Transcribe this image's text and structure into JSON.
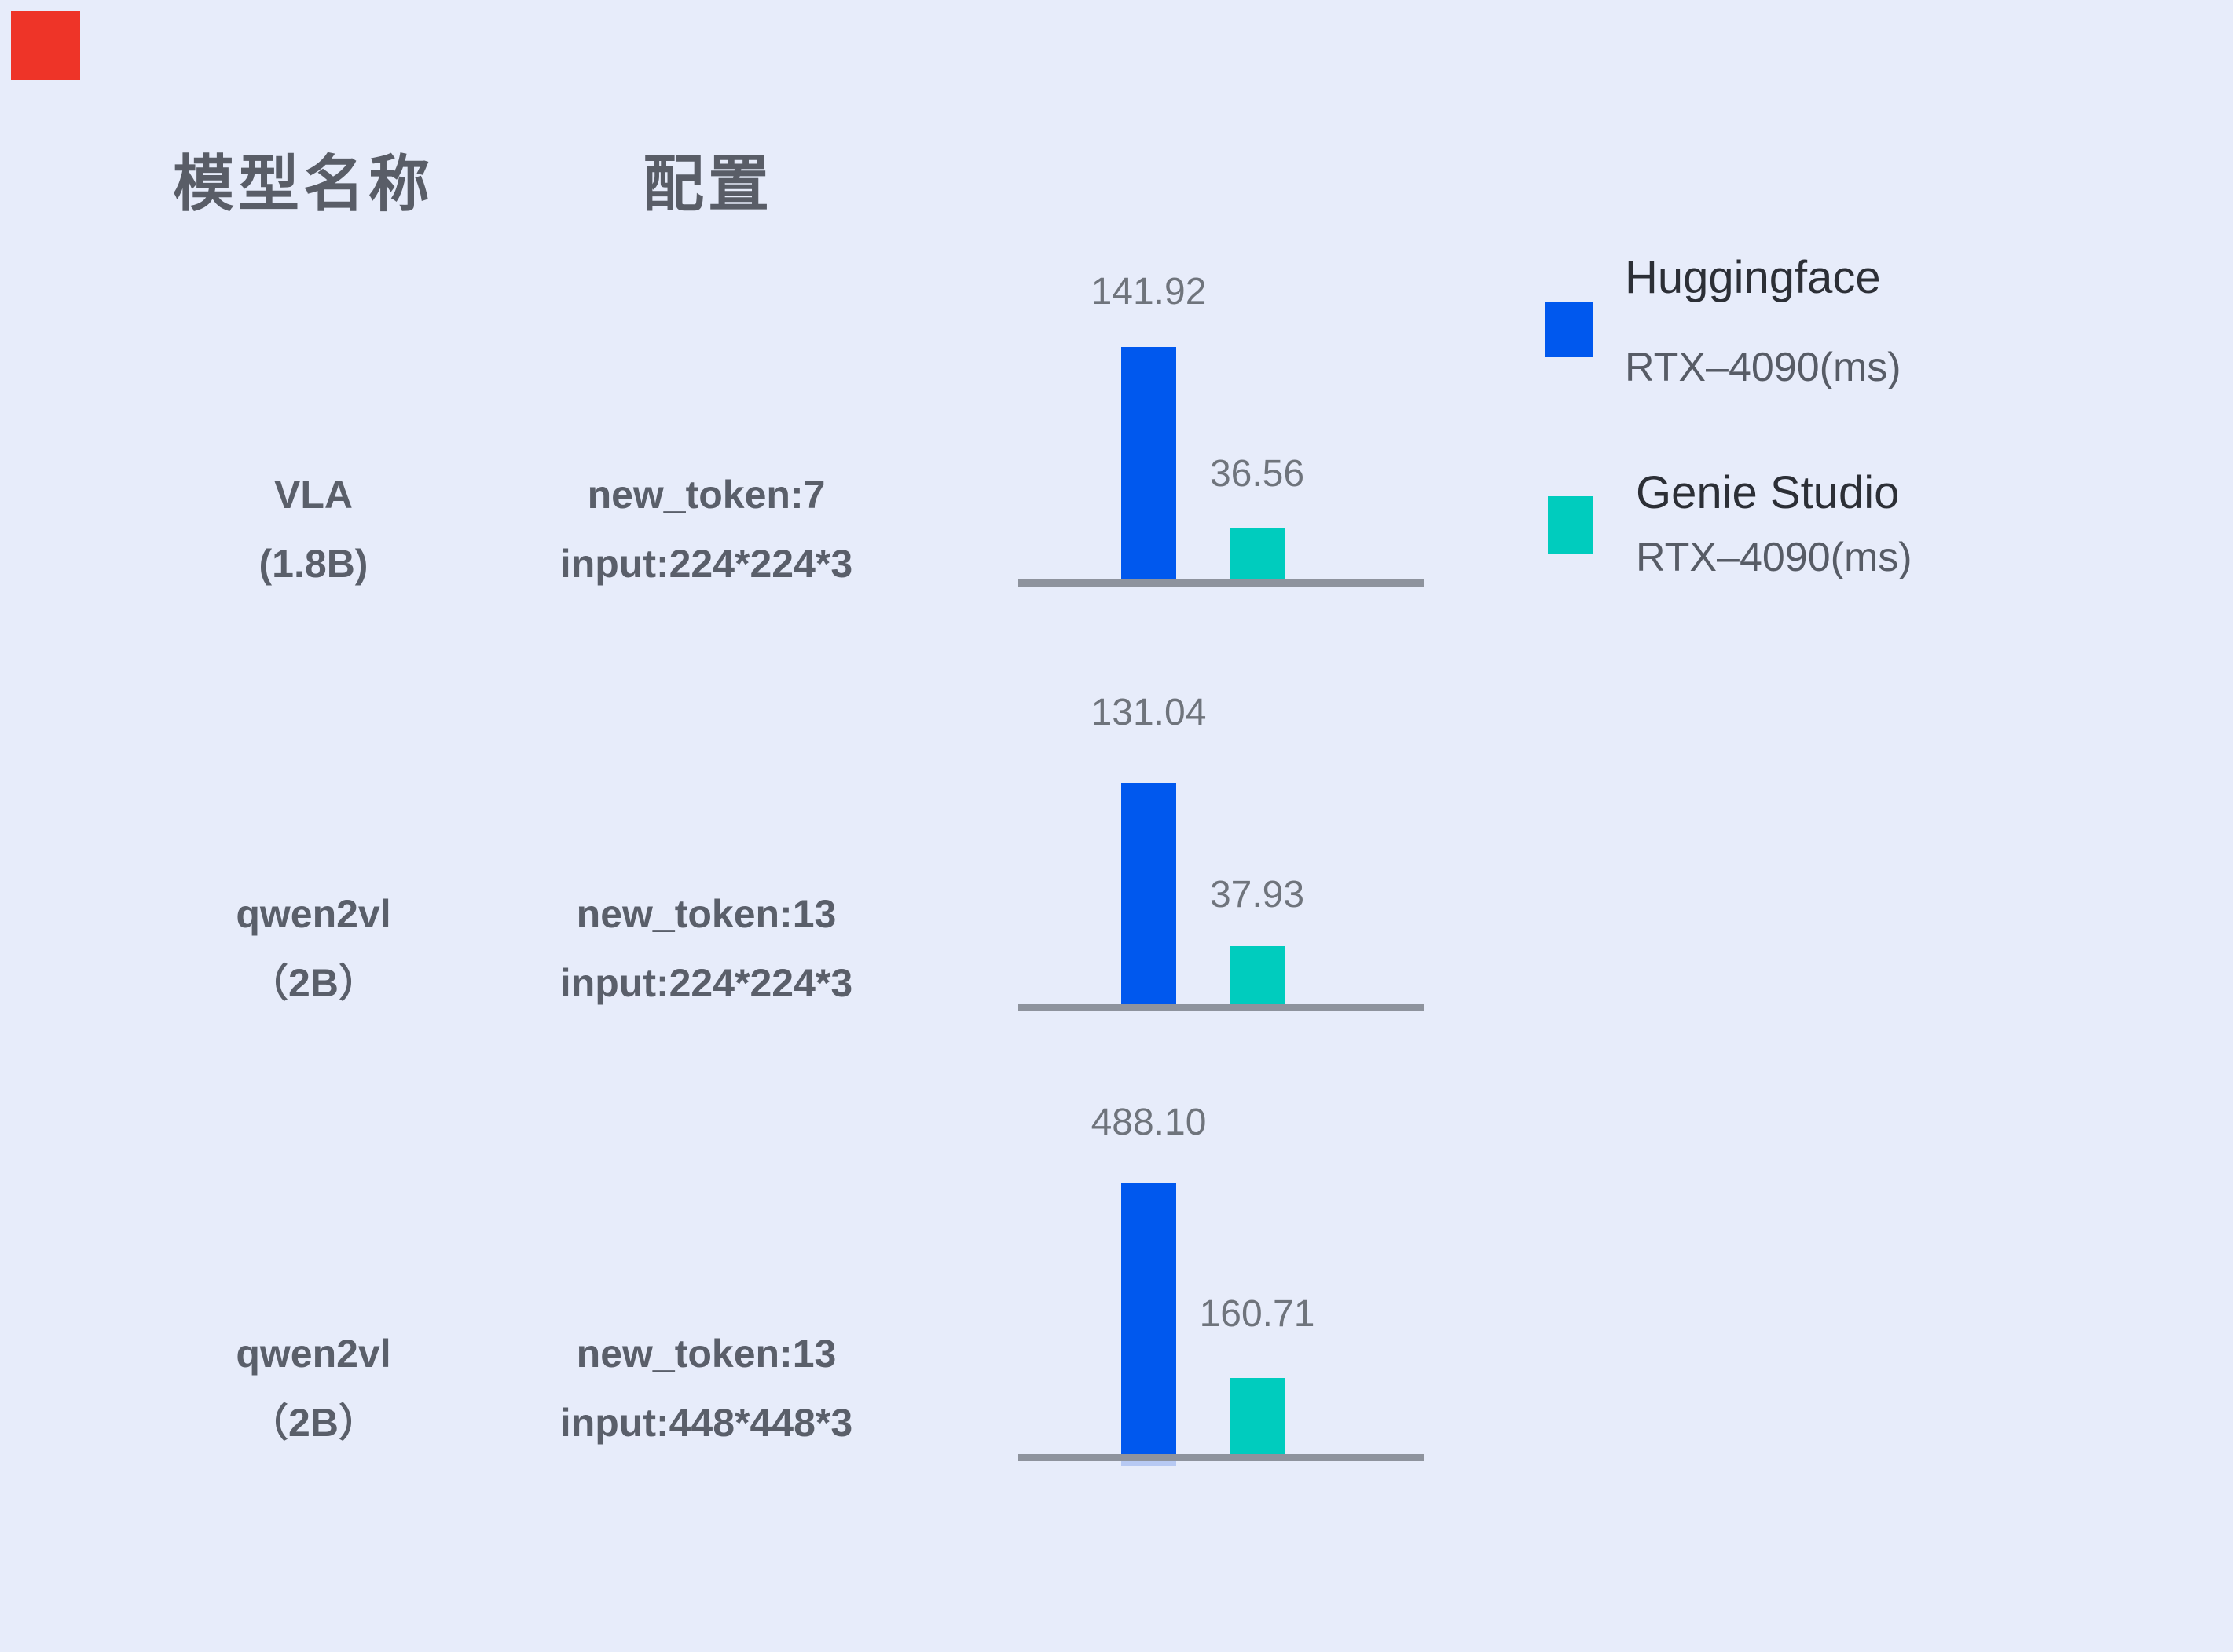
{
  "window": {
    "background": "#e7ecfa",
    "marker_color": "#ee3428"
  },
  "table_header": {
    "model": "模型名称",
    "config": "配置"
  },
  "legend": {
    "items": [
      {
        "name": "Huggingface",
        "device": "RTX–4090(ms)",
        "color": "#0058ee"
      },
      {
        "name": "Genie Studio",
        "device": "RTX–4090(ms)",
        "color": "#00ccbe"
      }
    ]
  },
  "chart_data": {
    "type": "bar",
    "orientation": "vertical",
    "unit": "ms",
    "grid": false,
    "legend_position": "right",
    "categories": [
      "VLA (1.8B)",
      "qwen2vl (2B)",
      "qwen2vl (2B)"
    ],
    "series": [
      {
        "name": "Huggingface RTX–4090(ms)",
        "color": "#0058ee",
        "values": [
          141.92,
          131.04,
          488.1
        ]
      },
      {
        "name": "Genie Studio RTX–4090(ms)",
        "color": "#00ccbe",
        "values": [
          36.56,
          37.93,
          160.71
        ]
      }
    ],
    "rows": [
      {
        "model": [
          "VLA",
          "(1.8B)"
        ],
        "config": [
          "new_token:7",
          "input:224*224*3"
        ],
        "huggingface_ms": "141.92",
        "genie_studio_ms": "36.56"
      },
      {
        "model": [
          "qwen2vl",
          "（2B）"
        ],
        "config": [
          "new_token:13",
          "input:224*224*3"
        ],
        "huggingface_ms": "131.04",
        "genie_studio_ms": "37.93"
      },
      {
        "model": [
          "qwen2vl",
          "（2B）"
        ],
        "config": [
          "new_token:13",
          "input:448*448*3"
        ],
        "huggingface_ms": "488.10",
        "genie_studio_ms": "160.71"
      }
    ]
  }
}
